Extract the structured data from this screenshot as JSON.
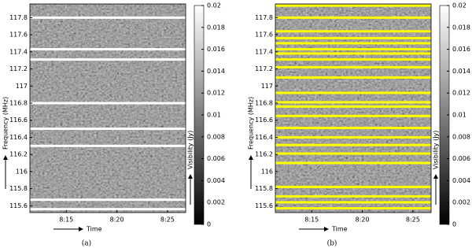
{
  "chart_data": [
    {
      "type": "heatmap",
      "caption": "(a)",
      "xlabel": "Time",
      "ylabel": "Frequency (MHz)",
      "xlim": [
        491.4,
        506.8
      ],
      "xticks": [
        {
          "value": 495,
          "label": "8:15"
        },
        {
          "value": 500,
          "label": "8:20"
        },
        {
          "value": 505,
          "label": "8:25"
        }
      ],
      "ylim": [
        115.52,
        117.96
      ],
      "yticks": [
        115.6,
        115.8,
        116,
        116.2,
        116.4,
        116.6,
        116.8,
        117,
        117.2,
        117.4,
        117.6,
        117.8
      ],
      "colorbar": {
        "label": "Visibility (Jy)",
        "lim": [
          0,
          0.02
        ],
        "ticks": [
          0,
          0.002,
          0.004,
          0.006,
          0.008,
          0.01,
          0.012,
          0.014,
          0.016,
          0.018,
          0.02
        ]
      },
      "flagged": {
        "color": "#ffffff",
        "frequencies": [
          117.8,
          117.43,
          117.31,
          116.8,
          116.5,
          116.3,
          115.67,
          115.56
        ]
      }
    },
    {
      "type": "heatmap",
      "caption": "(b)",
      "xlabel": "Time",
      "ylabel": "Frequency (MHz)",
      "xlim": [
        491.4,
        506.8
      ],
      "xticks": [
        {
          "value": 495,
          "label": "8:15"
        },
        {
          "value": 500,
          "label": "8:20"
        },
        {
          "value": 505,
          "label": "8:25"
        }
      ],
      "ylim": [
        115.52,
        117.96
      ],
      "yticks": [
        115.6,
        115.8,
        116,
        116.2,
        116.4,
        116.6,
        116.8,
        117,
        117.2,
        117.4,
        117.6,
        117.8
      ],
      "colorbar": {
        "label": "Visibility (Jy)",
        "lim": [
          0,
          0.02
        ],
        "ticks": [
          0,
          0.002,
          0.004,
          0.006,
          0.008,
          0.01,
          0.012,
          0.014,
          0.016,
          0.018,
          0.02
        ]
      },
      "flagged": {
        "color": "#ffff00",
        "frequencies": [
          117.94,
          117.8,
          117.64,
          117.56,
          117.5,
          117.43,
          117.38,
          117.31,
          117.22,
          117.1,
          116.92,
          116.81,
          116.76,
          116.65,
          116.51,
          116.4,
          116.31,
          116.21,
          116.1,
          115.82,
          115.71,
          115.64,
          115.57
        ]
      }
    }
  ]
}
